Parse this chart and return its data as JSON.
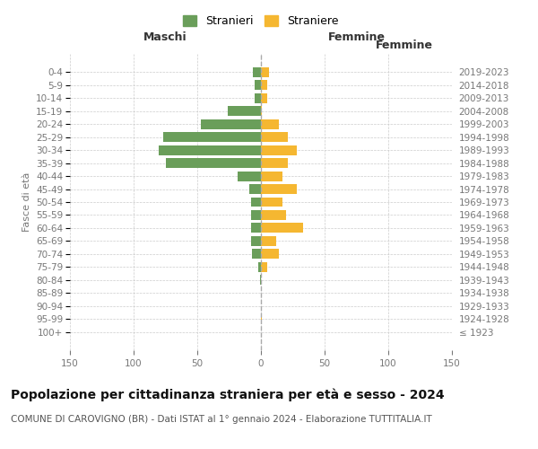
{
  "age_groups": [
    "100+",
    "95-99",
    "90-94",
    "85-89",
    "80-84",
    "75-79",
    "70-74",
    "65-69",
    "60-64",
    "55-59",
    "50-54",
    "45-49",
    "40-44",
    "35-39",
    "30-34",
    "25-29",
    "20-24",
    "15-19",
    "10-14",
    "5-9",
    "0-4"
  ],
  "birth_years": [
    "≤ 1923",
    "1924-1928",
    "1929-1933",
    "1934-1938",
    "1939-1943",
    "1944-1948",
    "1949-1953",
    "1954-1958",
    "1959-1963",
    "1964-1968",
    "1969-1973",
    "1974-1978",
    "1979-1983",
    "1984-1988",
    "1989-1993",
    "1994-1998",
    "1999-2003",
    "2004-2008",
    "2009-2013",
    "2014-2018",
    "2019-2023"
  ],
  "maschi": [
    0,
    0,
    0,
    0,
    1,
    2,
    7,
    8,
    8,
    8,
    8,
    9,
    18,
    75,
    80,
    77,
    47,
    26,
    5,
    5,
    6
  ],
  "femmine": [
    0,
    1,
    0,
    0,
    0,
    5,
    14,
    12,
    33,
    20,
    17,
    28,
    17,
    21,
    28,
    21,
    14,
    1,
    5,
    5,
    6
  ],
  "color_maschi": "#6a9e5a",
  "color_femmine": "#f5b731",
  "xlabel_maschi": "Maschi",
  "xlabel_femmine": "Femmine",
  "ylabel_left": "Fasce di età",
  "xlim": 150,
  "title": "Popolazione per cittadinanza straniera per età e sesso - 2024",
  "subtitle": "COMUNE DI CAROVIGNO (BR) - Dati ISTAT al 1° gennaio 2024 - Elaborazione TUTTITALIA.IT",
  "legend_maschi": "Stranieri",
  "legend_femmine": "Straniere",
  "bg_color": "#ffffff",
  "grid_color": "#cccccc",
  "dashed_line_color": "#aaaaaa",
  "title_fontsize": 10,
  "subtitle_fontsize": 7.5,
  "label_fontsize": 8,
  "tick_fontsize": 7.5,
  "header_fontsize": 9,
  "tick_color": "#777777"
}
